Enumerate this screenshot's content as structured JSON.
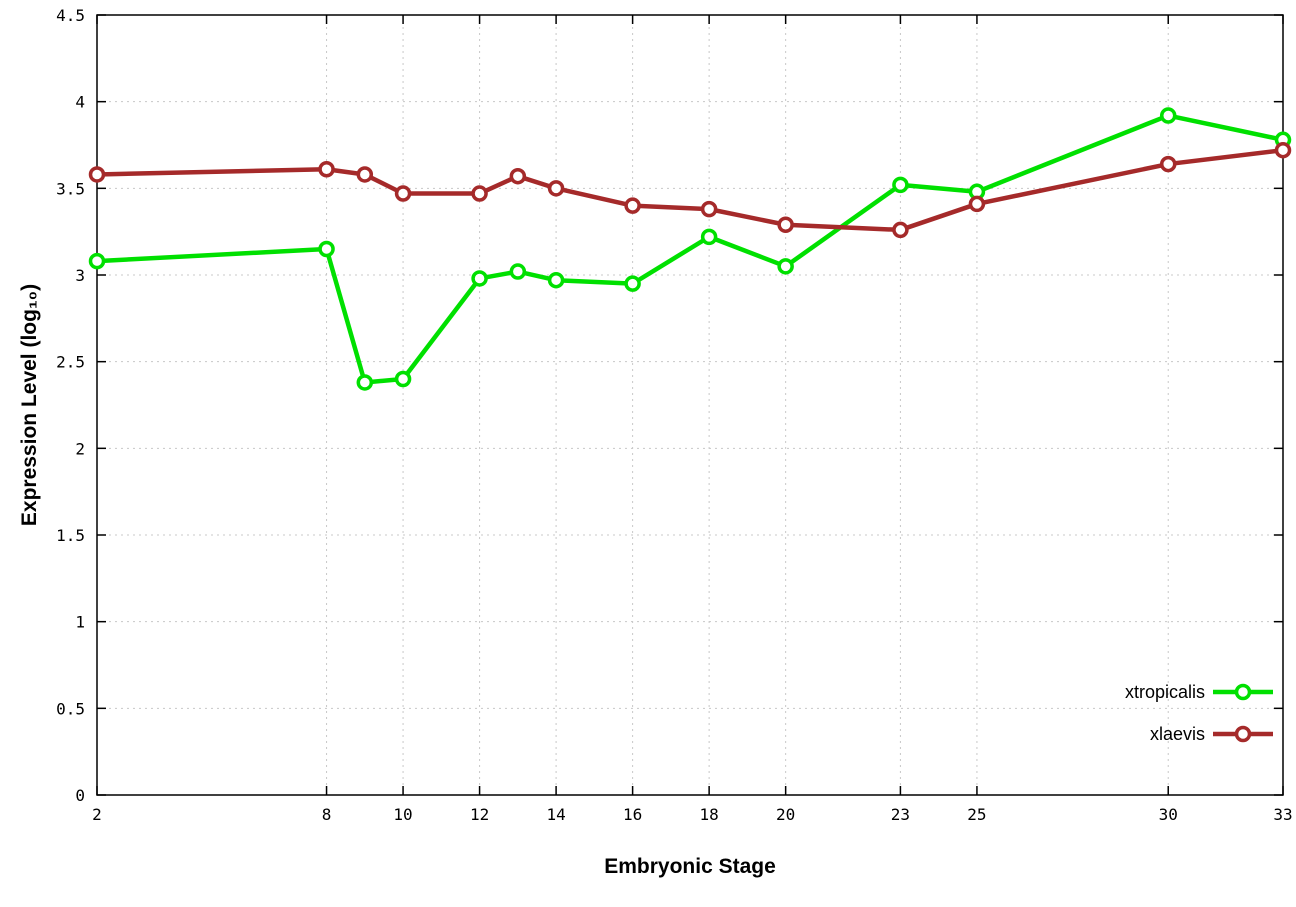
{
  "chart_data": {
    "type": "line",
    "title": "",
    "xlabel": "Embryonic Stage",
    "ylabel": "Expression Level (log₁₀)",
    "x": [
      2,
      8,
      9,
      10,
      12,
      13,
      14,
      16,
      18,
      20,
      23,
      25,
      30,
      33
    ],
    "series": [
      {
        "name": "xtropicalis",
        "color": "#00e000",
        "values": [
          3.08,
          3.15,
          2.38,
          2.4,
          2.98,
          3.02,
          2.97,
          2.95,
          3.22,
          3.05,
          3.52,
          3.48,
          3.92,
          3.78
        ]
      },
      {
        "name": "xlaevis",
        "color": "#a52a2a",
        "values": [
          3.58,
          3.61,
          3.58,
          3.47,
          3.47,
          3.57,
          3.5,
          3.4,
          3.38,
          3.29,
          3.26,
          3.41,
          3.64,
          3.72
        ]
      }
    ],
    "xticks": [
      2,
      8,
      10,
      12,
      14,
      16,
      18,
      20,
      23,
      25,
      30,
      33
    ],
    "yticks": [
      0,
      0.5,
      1,
      1.5,
      2,
      2.5,
      3,
      3.5,
      4,
      4.5
    ],
    "ytick_labels": [
      "0",
      "0.5",
      "1",
      "1.5",
      "2",
      "2.5",
      "3",
      "3.5",
      "4",
      "4.5"
    ],
    "xlim": [
      2,
      33
    ],
    "ylim": [
      0,
      4.5
    ],
    "grid": true,
    "legend_position": "bottom-right",
    "marker": "open-circle"
  }
}
